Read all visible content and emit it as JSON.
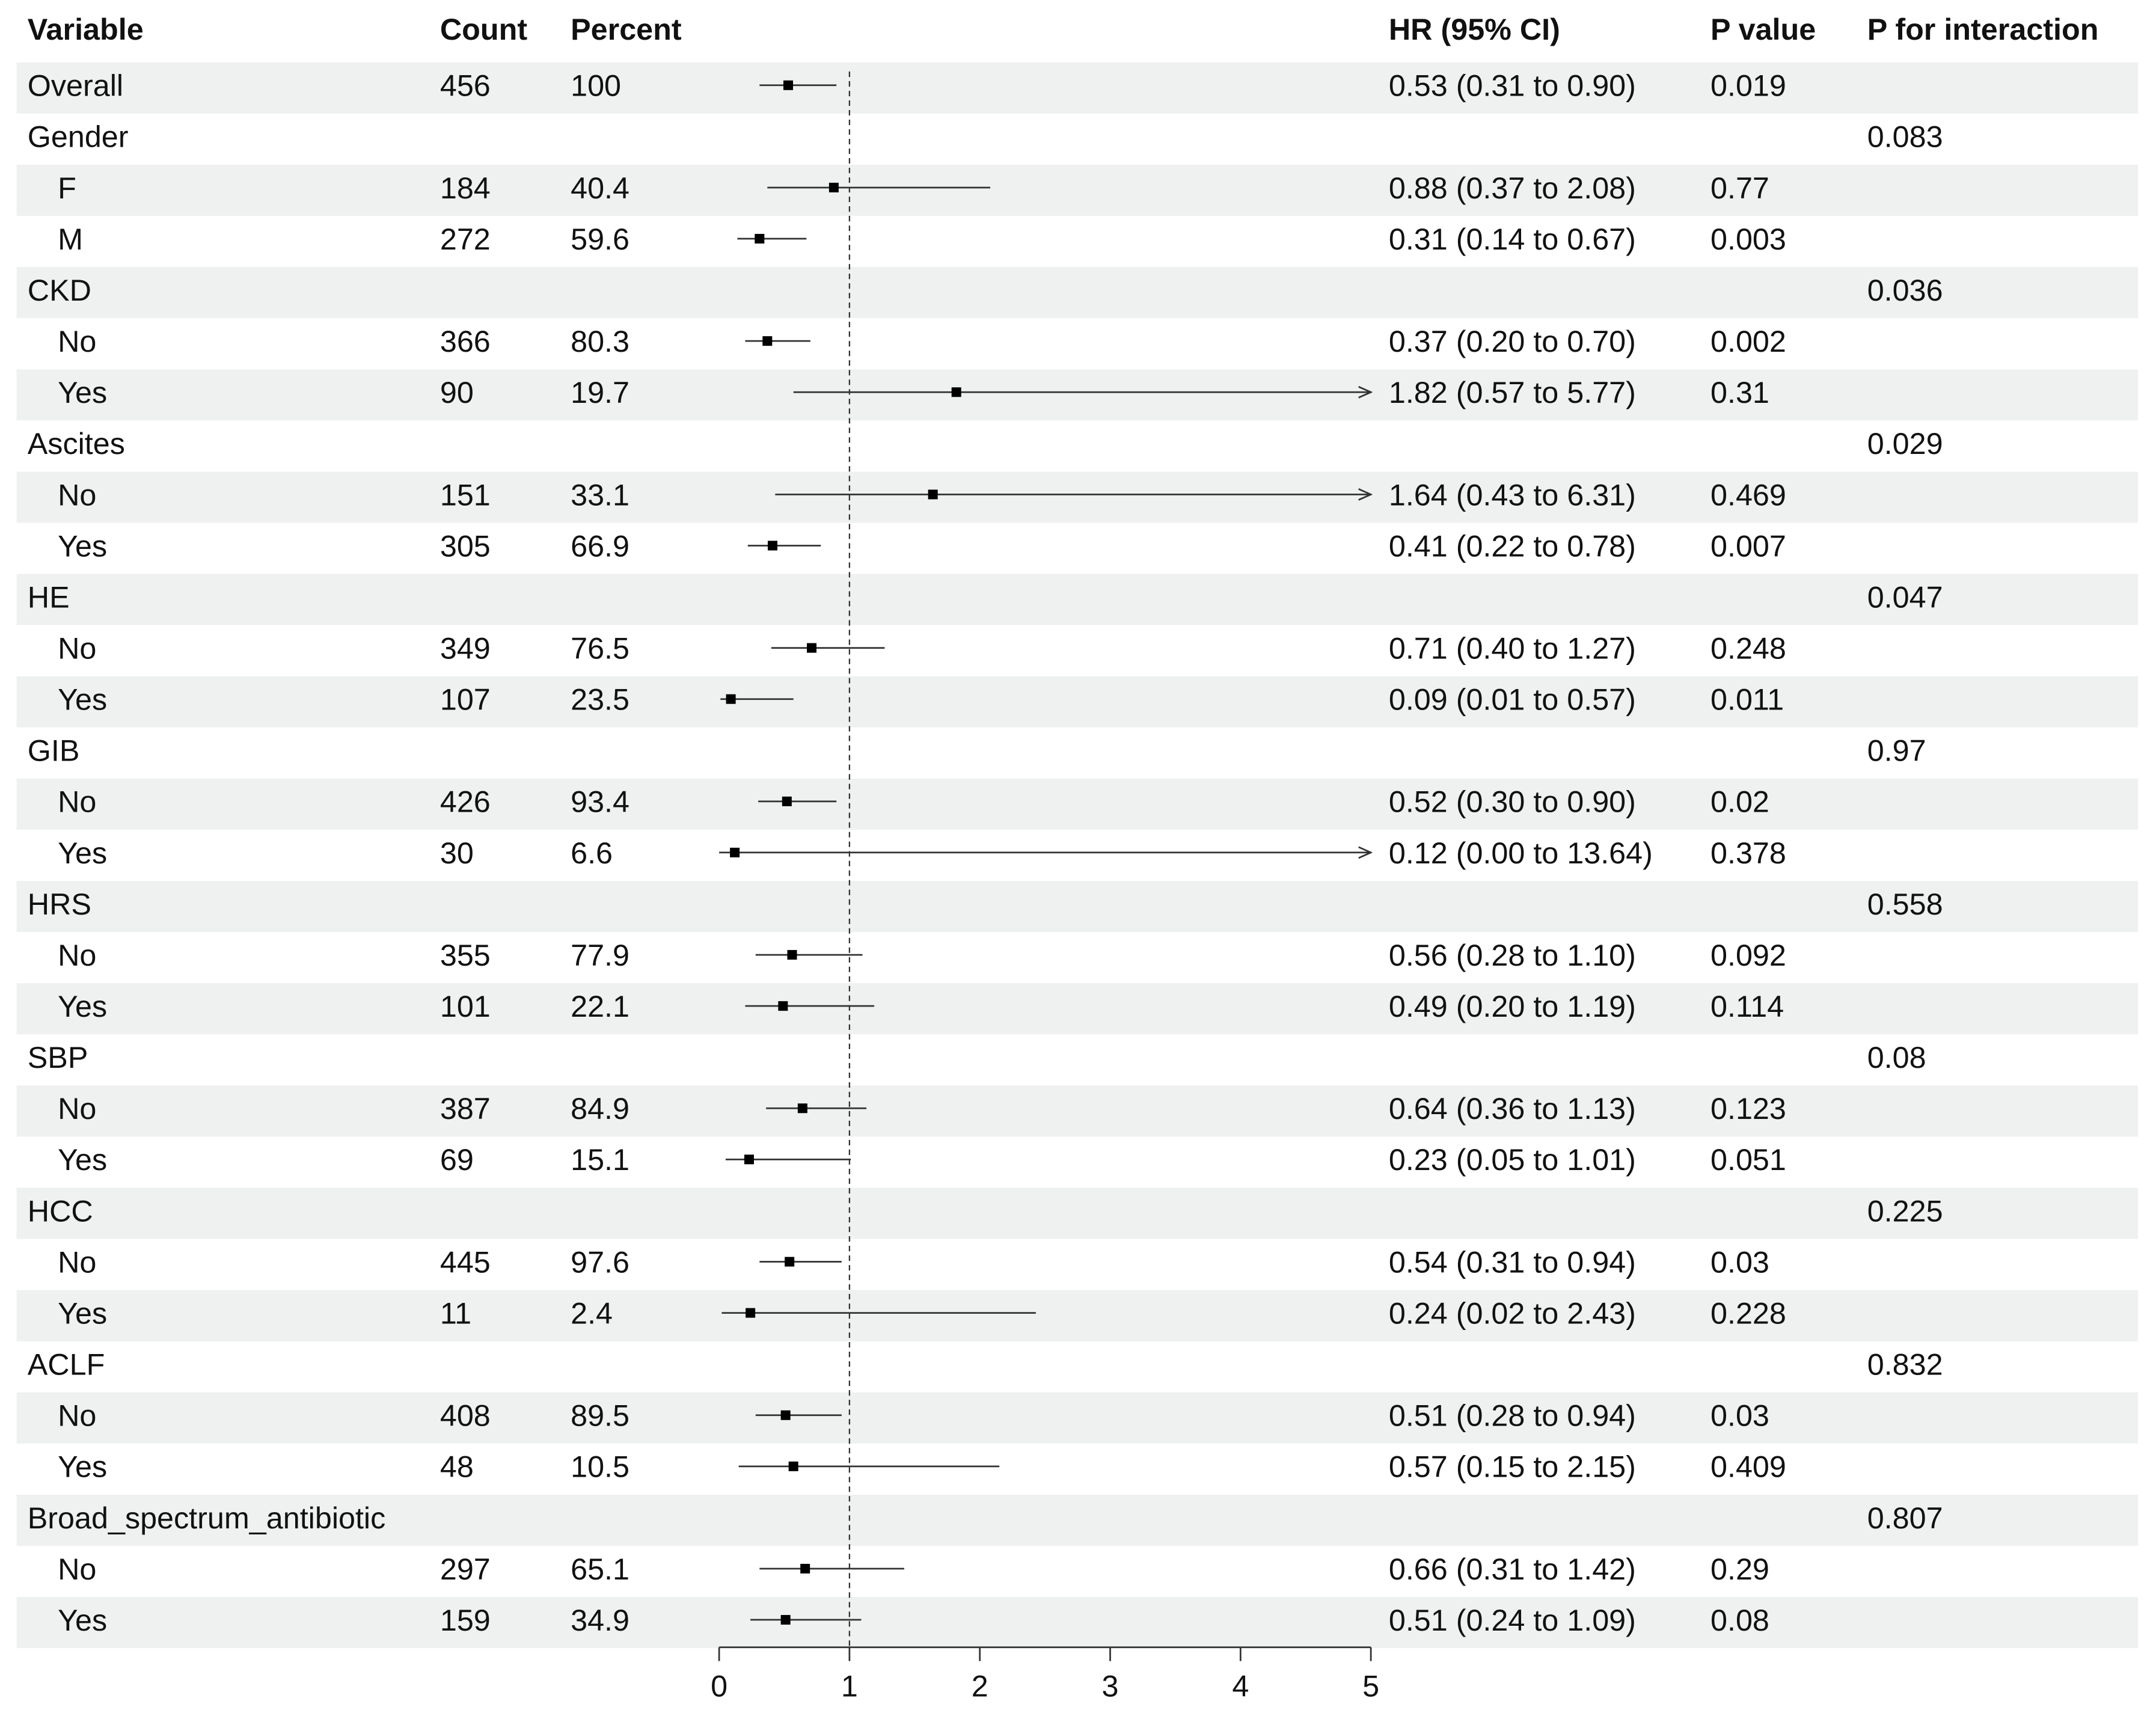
{
  "chart_data": {
    "type": "forest",
    "columns": [
      "Variable",
      "Count",
      "Percent",
      "HR (95% CI)",
      "P value",
      "P for interaction"
    ],
    "overall": {
      "label": "Overall",
      "count": 456,
      "percent": 100,
      "hr": 0.53,
      "lower": 0.31,
      "upper": 0.9,
      "hr_label": "0.53 (0.31 to 0.90)",
      "p": 0.019
    },
    "groups": [
      {
        "label": "Gender",
        "p_interaction": 0.083,
        "rows": [
          {
            "label": "F",
            "count": 184,
            "percent": 40.4,
            "hr": 0.88,
            "lower": 0.37,
            "upper": 2.08,
            "hr_label": "0.88 (0.37 to 2.08)",
            "p": 0.77
          },
          {
            "label": "M",
            "count": 272,
            "percent": 59.6,
            "hr": 0.31,
            "lower": 0.14,
            "upper": 0.67,
            "hr_label": "0.31 (0.14 to 0.67)",
            "p": 0.003
          }
        ]
      },
      {
        "label": "CKD",
        "p_interaction": 0.036,
        "rows": [
          {
            "label": "No",
            "count": 366,
            "percent": 80.3,
            "hr": 0.37,
            "lower": 0.2,
            "upper": 0.7,
            "hr_label": "0.37 (0.20 to 0.70)",
            "p": 0.002
          },
          {
            "label": "Yes",
            "count": 90,
            "percent": 19.7,
            "hr": 1.82,
            "lower": 0.57,
            "upper": 5.77,
            "hr_label": "1.82 (0.57 to 5.77)",
            "p": 0.31
          }
        ]
      },
      {
        "label": "Ascites",
        "p_interaction": 0.029,
        "rows": [
          {
            "label": "No",
            "count": 151,
            "percent": 33.1,
            "hr": 1.64,
            "lower": 0.43,
            "upper": 6.31,
            "hr_label": "1.64 (0.43 to 6.31)",
            "p": 0.469
          },
          {
            "label": "Yes",
            "count": 305,
            "percent": 66.9,
            "hr": 0.41,
            "lower": 0.22,
            "upper": 0.78,
            "hr_label": "0.41 (0.22 to 0.78)",
            "p": 0.007
          }
        ]
      },
      {
        "label": "HE",
        "p_interaction": 0.047,
        "rows": [
          {
            "label": "No",
            "count": 349,
            "percent": 76.5,
            "hr": 0.71,
            "lower": 0.4,
            "upper": 1.27,
            "hr_label": "0.71 (0.40 to 1.27)",
            "p": 0.248
          },
          {
            "label": "Yes",
            "count": 107,
            "percent": 23.5,
            "hr": 0.09,
            "lower": 0.01,
            "upper": 0.57,
            "hr_label": "0.09 (0.01 to 0.57)",
            "p": 0.011
          }
        ]
      },
      {
        "label": "GIB",
        "p_interaction": 0.97,
        "rows": [
          {
            "label": "No",
            "count": 426,
            "percent": 93.4,
            "hr": 0.52,
            "lower": 0.3,
            "upper": 0.9,
            "hr_label": "0.52 (0.30 to 0.90)",
            "p": 0.02
          },
          {
            "label": "Yes",
            "count": 30,
            "percent": 6.6,
            "hr": 0.12,
            "lower": 0.0,
            "upper": 13.64,
            "hr_label": "0.12 (0.00 to 13.64)",
            "p": 0.378
          }
        ]
      },
      {
        "label": "HRS",
        "p_interaction": 0.558,
        "rows": [
          {
            "label": "No",
            "count": 355,
            "percent": 77.9,
            "hr": 0.56,
            "lower": 0.28,
            "upper": 1.1,
            "hr_label": "0.56 (0.28 to 1.10)",
            "p": 0.092
          },
          {
            "label": "Yes",
            "count": 101,
            "percent": 22.1,
            "hr": 0.49,
            "lower": 0.2,
            "upper": 1.19,
            "hr_label": "0.49 (0.20 to 1.19)",
            "p": 0.114
          }
        ]
      },
      {
        "label": "SBP",
        "p_interaction": 0.08,
        "rows": [
          {
            "label": "No",
            "count": 387,
            "percent": 84.9,
            "hr": 0.64,
            "lower": 0.36,
            "upper": 1.13,
            "hr_label": "0.64 (0.36 to 1.13)",
            "p": 0.123
          },
          {
            "label": "Yes",
            "count": 69,
            "percent": 15.1,
            "hr": 0.23,
            "lower": 0.05,
            "upper": 1.01,
            "hr_label": "0.23 (0.05 to 1.01)",
            "p": 0.051
          }
        ]
      },
      {
        "label": "HCC",
        "p_interaction": 0.225,
        "rows": [
          {
            "label": "No",
            "count": 445,
            "percent": 97.6,
            "hr": 0.54,
            "lower": 0.31,
            "upper": 0.94,
            "hr_label": "0.54 (0.31 to 0.94)",
            "p": 0.03
          },
          {
            "label": "Yes",
            "count": 11,
            "percent": 2.4,
            "hr": 0.24,
            "lower": 0.02,
            "upper": 2.43,
            "hr_label": "0.24 (0.02 to 2.43)",
            "p": 0.228
          }
        ]
      },
      {
        "label": "ACLF",
        "p_interaction": 0.832,
        "rows": [
          {
            "label": "No",
            "count": 408,
            "percent": 89.5,
            "hr": 0.51,
            "lower": 0.28,
            "upper": 0.94,
            "hr_label": "0.51 (0.28 to 0.94)",
            "p": 0.03
          },
          {
            "label": "Yes",
            "count": 48,
            "percent": 10.5,
            "hr": 0.57,
            "lower": 0.15,
            "upper": 2.15,
            "hr_label": "0.57 (0.15 to 2.15)",
            "p": 0.409
          }
        ]
      },
      {
        "label": "Broad_spectrum_antibiotic",
        "p_interaction": 0.807,
        "rows": [
          {
            "label": "No",
            "count": 297,
            "percent": 65.1,
            "hr": 0.66,
            "lower": 0.31,
            "upper": 1.42,
            "hr_label": "0.66 (0.31 to 1.42)",
            "p": 0.29
          },
          {
            "label": "Yes",
            "count": 159,
            "percent": 34.9,
            "hr": 0.51,
            "lower": 0.24,
            "upper": 1.09,
            "hr_label": "0.51 (0.24 to 1.09)",
            "p": 0.08
          }
        ]
      }
    ],
    "xlim": [
      0,
      5
    ],
    "xticks": [
      0,
      1,
      2,
      3,
      4,
      5
    ],
    "reference": 1
  }
}
